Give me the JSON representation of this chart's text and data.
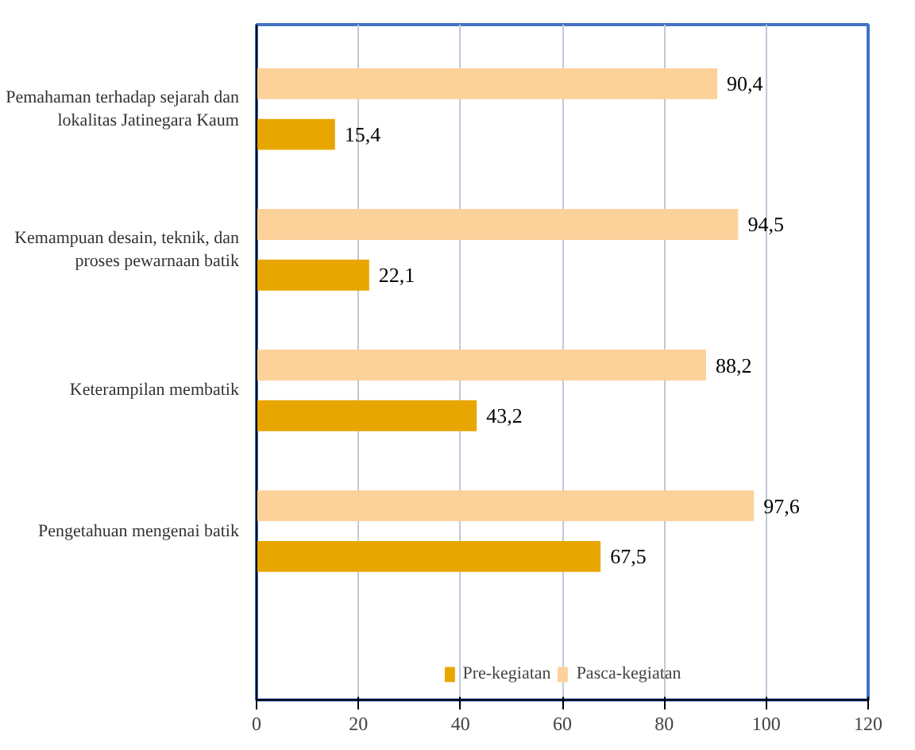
{
  "chart_data": {
    "type": "bar",
    "orientation": "horizontal",
    "categories": [
      "Pemahaman terhadap sejarah dan lokalitas Jatinegara Kaum",
      "Kemampuan desain, teknik, dan proses pewarnaan batik",
      "Keterampilan membatik",
      "Pengetahuan mengenai batik"
    ],
    "series": [
      {
        "name": "Pre-kegiatan",
        "color": "#e8a600",
        "values": [
          15.4,
          22.1,
          43.2,
          67.5
        ],
        "value_labels": [
          "15,4",
          "22,1",
          "43,2",
          "67,5"
        ]
      },
      {
        "name": "Pasca-kegiatan",
        "color": "#fcd29a",
        "values": [
          90.4,
          94.5,
          88.2,
          97.6
        ],
        "value_labels": [
          "90,4",
          "94,5",
          "88,2",
          "97,6"
        ]
      }
    ],
    "xlim": [
      0,
      120
    ],
    "xticks": [
      0,
      20,
      40,
      60,
      80,
      100,
      120
    ],
    "grid": "x",
    "legend": "bottom"
  }
}
